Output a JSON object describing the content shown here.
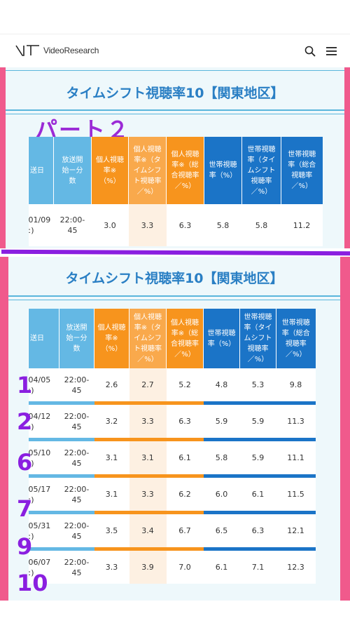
{
  "header": {
    "brand": "VideoResearch",
    "icons": [
      "search-icon",
      "menu-icon"
    ]
  },
  "panel1": {
    "title": "タイムシフト視聴率10【関東地区】",
    "overlay_label": "パート２",
    "columns": [
      "送日",
      "放送開始ー分数",
      "個人視聴率※（%）",
      "個人視聴率※（タイムシフト視聴率／%）",
      "個人視聴率※（総合視聴率／%）",
      "世帯視聴率（%）",
      "世帯視聴率（タイムシフト視聴率／%）",
      "世帯視聴率（総合視聴率／%）"
    ],
    "rows": [
      {
        "date": "01/09",
        "date2": "ː)",
        "time": "22:00-",
        "dur": "45",
        "v1": "3.0",
        "v2": "3.3",
        "v3": "6.3",
        "v4": "5.8",
        "v5": "5.8",
        "v6": "11.2"
      }
    ]
  },
  "panel2": {
    "title": "タイムシフト視聴率10【関東地区】",
    "columns": [
      "送日",
      "放送開始ー分数",
      "個人視聴率※（%）",
      "個人視聴率※（タイムシフト視聴率／%）",
      "個人視聴率※（総合視聴率／%）",
      "世帯視聴率（%）",
      "世帯視聴率（タイムシフト視聴率／%）",
      "世帯視聴率（総合視聴率／%）"
    ],
    "rows": [
      {
        "mark": "1",
        "date": "04/05",
        "date2": "ː)",
        "time": "22:00-",
        "dur": "45",
        "v1": "2.6",
        "v2": "2.7",
        "v3": "5.2",
        "v4": "4.8",
        "v5": "5.3",
        "v6": "9.8"
      },
      {
        "mark": "2",
        "date": "04/12",
        "date2": "ː)",
        "time": "22:00-",
        "dur": "45",
        "v1": "3.2",
        "v2": "3.3",
        "v3": "6.3",
        "v4": "5.9",
        "v5": "5.9",
        "v6": "11.3"
      },
      {
        "mark": "6",
        "date": "05/10",
        "date2": "ː)",
        "time": "22:00-",
        "dur": "45",
        "v1": "3.1",
        "v2": "3.1",
        "v3": "6.1",
        "v4": "5.8",
        "v5": "5.9",
        "v6": "11.1"
      },
      {
        "mark": "7",
        "date": "05/17",
        "date2": "ː)",
        "time": "22:00-",
        "dur": "45",
        "v1": "3.1",
        "v2": "3.3",
        "v3": "6.2",
        "v4": "6.0",
        "v5": "6.1",
        "v6": "11.5"
      },
      {
        "mark": "9",
        "date": "05/31",
        "date2": "ː)",
        "time": "22:00-",
        "dur": "45",
        "v1": "3.5",
        "v2": "3.4",
        "v3": "6.7",
        "v4": "6.5",
        "v5": "6.3",
        "v6": "12.1"
      },
      {
        "mark": "10",
        "date": "06/07",
        "date2": "ː)",
        "time": "22:00-",
        "dur": "45",
        "v1": "3.3",
        "v2": "3.9",
        "v3": "7.0",
        "v4": "6.1",
        "v5": "7.1",
        "v6": "12.3"
      }
    ]
  },
  "colors": {
    "accent_purple": "#8a1fe0",
    "header_orange": "#f7941d",
    "header_blue": "#1b74c7",
    "header_light_blue": "#64b8e4",
    "frame_pink": "#f05a8c",
    "title_blue": "#2a7fc4"
  }
}
